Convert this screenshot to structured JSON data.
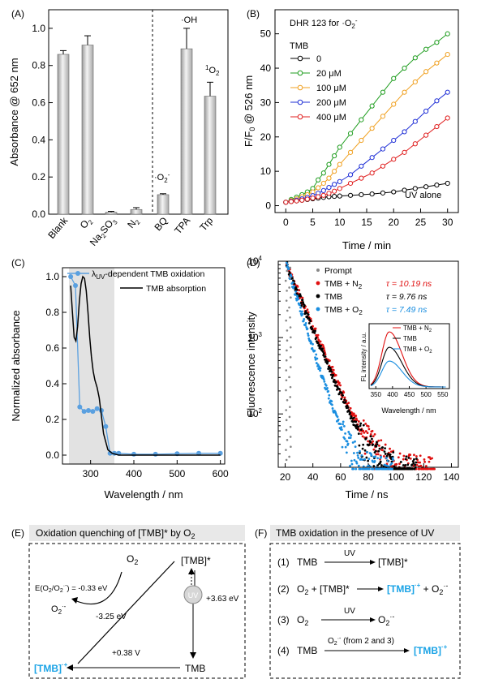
{
  "colors": {
    "tmb0": "#000000",
    "tmb20": "#1f9d1f",
    "tmb100": "#f0a020",
    "tmb200": "#1f2fd6",
    "tmb400": "#e02020",
    "prompt": "#888888",
    "n2": "#e01010",
    "o2": "#1a8ee0",
    "cyan_text": "#1aa3e6",
    "bar": "#c9c9c9"
  },
  "chart_data": [
    {
      "panel": "(A)",
      "type": "bar",
      "ylabel": "Absorbance @ 652 nm",
      "ylim": [
        0,
        1.1
      ],
      "yticks": [
        "0.0",
        "0.2",
        "0.4",
        "0.6",
        "0.8",
        "1.0"
      ],
      "categories": [
        "Blank",
        "O2",
        "Na2SO3",
        "N2",
        "BQ",
        "TPA",
        "Trp"
      ],
      "values": [
        0.86,
        0.91,
        0.01,
        0.025,
        0.105,
        0.89,
        0.635
      ],
      "errors": [
        0.02,
        0.05,
        0.005,
        0.01,
        0.005,
        0.11,
        0.075
      ],
      "annotations": [
        "·O2-",
        "·OH",
        "1O2"
      ],
      "divider_after": "N2"
    },
    {
      "panel": "(B)",
      "type": "line",
      "title": "DHR 123 for ·O2-",
      "xlabel": "Time / min",
      "ylabel": "F/F0 @ 526 nm",
      "xlim": [
        0,
        30
      ],
      "ylim": [
        0,
        55
      ],
      "xticks": [
        "0",
        "5",
        "10",
        "15",
        "20",
        "25",
        "30"
      ],
      "yticks": [
        "0",
        "10",
        "20",
        "30",
        "40",
        "50"
      ],
      "legend_title": "TMB",
      "annotation": "UV alone",
      "x": [
        0,
        1,
        2,
        3,
        4,
        5,
        6,
        7,
        8,
        9,
        10,
        12,
        14,
        16,
        18,
        20,
        22,
        24,
        26,
        28,
        30
      ],
      "series": [
        {
          "name": "0",
          "color_key": "tmb0",
          "values": [
            1,
            1.2,
            1.4,
            1.6,
            1.8,
            2.0,
            2.2,
            2.4,
            2.6,
            2.7,
            2.8,
            3.0,
            3.2,
            3.4,
            3.7,
            4.0,
            4.5,
            5.0,
            5.5,
            6.0,
            6.5
          ]
        },
        {
          "name": "20 μM",
          "color_key": "tmb20",
          "values": [
            1,
            1.8,
            2.5,
            3.2,
            4.0,
            5.0,
            7.5,
            9.5,
            12.0,
            14.5,
            17.0,
            21.0,
            25.0,
            29.0,
            33.0,
            37.0,
            40.0,
            43.0,
            45.5,
            47.5,
            50.0
          ]
        },
        {
          "name": "100 μM",
          "color_key": "tmb100",
          "values": [
            1,
            1.5,
            2.0,
            2.6,
            3.2,
            4.0,
            5.2,
            6.5,
            8.0,
            10.0,
            12.0,
            15.5,
            19.0,
            22.5,
            26.0,
            29.5,
            33.0,
            36.0,
            39.0,
            41.5,
            44.0
          ]
        },
        {
          "name": "200 μM",
          "color_key": "tmb200",
          "values": [
            1,
            1.3,
            1.6,
            2.0,
            2.4,
            2.9,
            3.6,
            4.4,
            5.3,
            6.2,
            7.0,
            9.0,
            11.5,
            14.0,
            16.5,
            19.0,
            21.5,
            24.5,
            27.5,
            30.5,
            33.0
          ]
        },
        {
          "name": "400 μM",
          "color_key": "tmb400",
          "values": [
            1,
            1.2,
            1.4,
            1.6,
            1.9,
            2.2,
            2.6,
            3.0,
            3.6,
            4.2,
            5.0,
            6.5,
            8.0,
            9.5,
            11.5,
            13.5,
            15.5,
            18.0,
            20.5,
            23.0,
            25.5
          ]
        }
      ]
    },
    {
      "panel": "(C)",
      "type": "line",
      "xlabel": "Wavelength / nm",
      "ylabel": "Normalized absorbance",
      "xlim": [
        235,
        610
      ],
      "ylim": [
        -0.05,
        1.05
      ],
      "xticks": [
        "300",
        "400",
        "500",
        "600"
      ],
      "yticks": [
        "0.0",
        "0.2",
        "0.4",
        "0.6",
        "0.8",
        "1.0"
      ],
      "shaded_range": [
        250,
        355
      ],
      "series": [
        {
          "name": "λUV-dependent TMB oxidation",
          "x": [
            254,
            265,
            275,
            285,
            295,
            305,
            315,
            325,
            335,
            345,
            355,
            365,
            400,
            450,
            500,
            550,
            600
          ],
          "values": [
            1.0,
            0.95,
            0.27,
            0.245,
            0.25,
            0.245,
            0.26,
            0.25,
            0.16,
            0.01,
            0.01,
            0.01,
            0.005,
            0.005,
            0.008,
            0.01,
            0.01
          ]
        },
        {
          "name": "TMB absorption",
          "x": [
            254,
            258,
            262,
            266,
            270,
            274,
            278,
            282,
            286,
            290,
            294,
            298,
            302,
            306,
            310,
            315,
            320,
            325,
            330,
            340,
            350,
            365,
            400,
            450,
            500,
            550,
            600
          ],
          "values": [
            0.95,
            0.8,
            0.66,
            0.64,
            0.72,
            0.86,
            0.96,
            1.0,
            0.99,
            0.92,
            0.8,
            0.66,
            0.55,
            0.47,
            0.42,
            0.38,
            0.32,
            0.22,
            0.12,
            0.03,
            0.01,
            0.0,
            0.0,
            0.0,
            0.0,
            0.0,
            0.0
          ]
        }
      ]
    },
    {
      "panel": "(D)",
      "type": "scatter",
      "xlabel": "Time / ns",
      "ylabel": "Fluorescence intensity",
      "xlim": [
        15,
        145
      ],
      "ylim_log": [
        20,
        10000
      ],
      "xticks": [
        "20",
        "40",
        "60",
        "80",
        "100",
        "120",
        "140"
      ],
      "yticks": [
        "10^2",
        "10^3",
        "10^4"
      ],
      "series": [
        {
          "name": "Prompt",
          "tau": ""
        },
        {
          "name": "TMB + N2",
          "tau": "τ = 10.19 ns"
        },
        {
          "name": "TMB",
          "tau": "τ = 9.76 ns"
        },
        {
          "name": "TMB + O2",
          "tau": "τ = 7.49 ns"
        }
      ],
      "inset": {
        "xlabel": "Wavelength / nm",
        "ylabel": "FL intensity / a.u.",
        "xticks": [
          "350",
          "400",
          "450",
          "500",
          "550"
        ],
        "peak_x": 390,
        "peaks": [
          1.0,
          0.72,
          0.47
        ],
        "legend": [
          "TMB + N2",
          "TMB",
          "TMB + O2"
        ]
      }
    }
  ],
  "panels": {
    "a_label": "(A)",
    "b_label": "(B)",
    "c_label": "(C)",
    "d_label": "(D)",
    "e_label": "(E)",
    "f_label": "(F)"
  },
  "panel_e": {
    "header": "Oxidation quenching of [TMB]* by O2",
    "o2": "O2",
    "tmb_star": "[TMB]*",
    "e_text": "E(O2/O2·-) = -0.33 eV",
    "o2_minus": "O2·-",
    "e_325": "-3.25 eV",
    "e_363": "+3.63 eV",
    "uv": "UV",
    "e_038": "+0.38 V",
    "tmb_plus": "[TMB]·+",
    "tmb": "TMB"
  },
  "panel_f": {
    "header": "TMB oxidation in the presence of UV",
    "rows": [
      {
        "num": "(1)",
        "left": "TMB",
        "over": "UV",
        "right": "[TMB]*"
      },
      {
        "num": "(2)",
        "left": "O2 + [TMB]*",
        "over": "",
        "right": "[TMB]·+ + O2·-"
      },
      {
        "num": "(3)",
        "left": "O2",
        "over": "UV",
        "right": "O2·-"
      },
      {
        "num": "(4)",
        "left": "TMB",
        "over": "O2·- (from 2 and 3)",
        "right": "[TMB]·+"
      }
    ]
  }
}
